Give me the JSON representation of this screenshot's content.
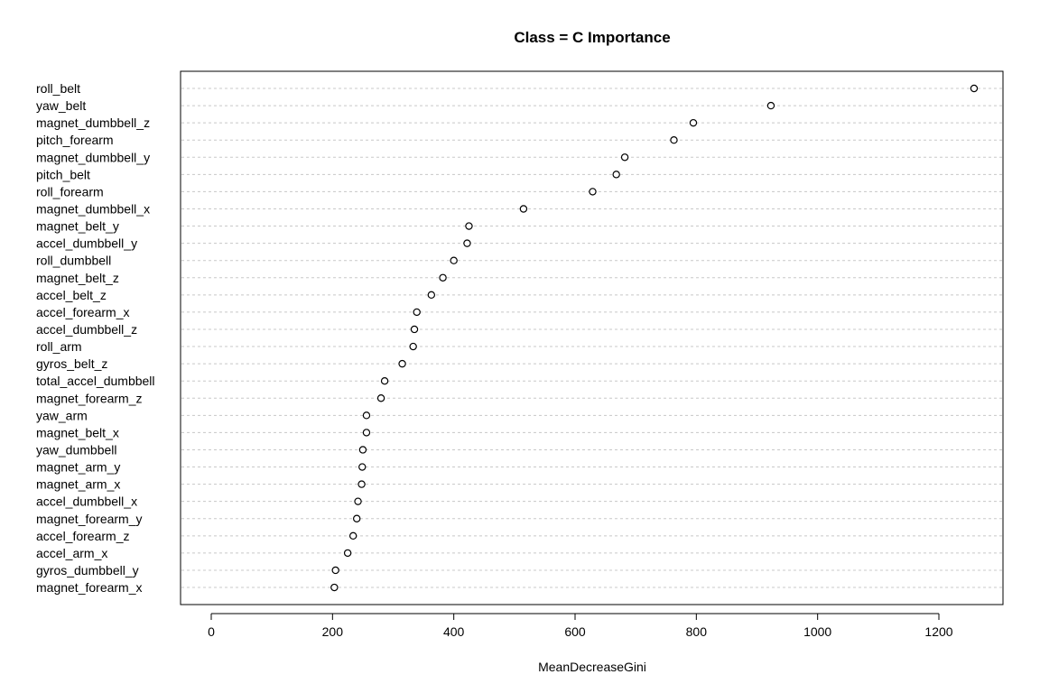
{
  "chart_data": {
    "type": "scatter",
    "title": "Class = C Importance",
    "xlabel": "MeanDecreaseGini",
    "ylabel": "",
    "xlim": [
      -50,
      1300
    ],
    "x_ticks": [
      0,
      200,
      400,
      600,
      800,
      1000,
      1200
    ],
    "x_tick_labels": [
      "0",
      "200",
      "400",
      "600",
      "800",
      "1000",
      "1200"
    ],
    "grid": "horizontal dotted guide per variable",
    "legend": "none",
    "point_style": "open circle",
    "categories": [
      "roll_belt",
      "yaw_belt",
      "magnet_dumbbell_z",
      "pitch_forearm",
      "magnet_dumbbell_y",
      "pitch_belt",
      "roll_forearm",
      "magnet_dumbbell_x",
      "magnet_belt_y",
      "accel_dumbbell_y",
      "roll_dumbbell",
      "magnet_belt_z",
      "accel_belt_z",
      "accel_forearm_x",
      "accel_dumbbell_z",
      "roll_arm",
      "gyros_belt_z",
      "total_accel_dumbbell",
      "magnet_forearm_z",
      "yaw_arm",
      "magnet_belt_x",
      "yaw_dumbbell",
      "magnet_arm_y",
      "magnet_arm_x",
      "accel_dumbbell_x",
      "magnet_forearm_y",
      "accel_forearm_z",
      "accel_arm_x",
      "gyros_dumbbell_y",
      "magnet_forearm_x"
    ],
    "values": [
      1258,
      923,
      795,
      763,
      682,
      668,
      629,
      515,
      425,
      422,
      400,
      382,
      363,
      339,
      335,
      333,
      315,
      286,
      280,
      256,
      256,
      250,
      249,
      248,
      242,
      240,
      234,
      225,
      205,
      203
    ]
  }
}
